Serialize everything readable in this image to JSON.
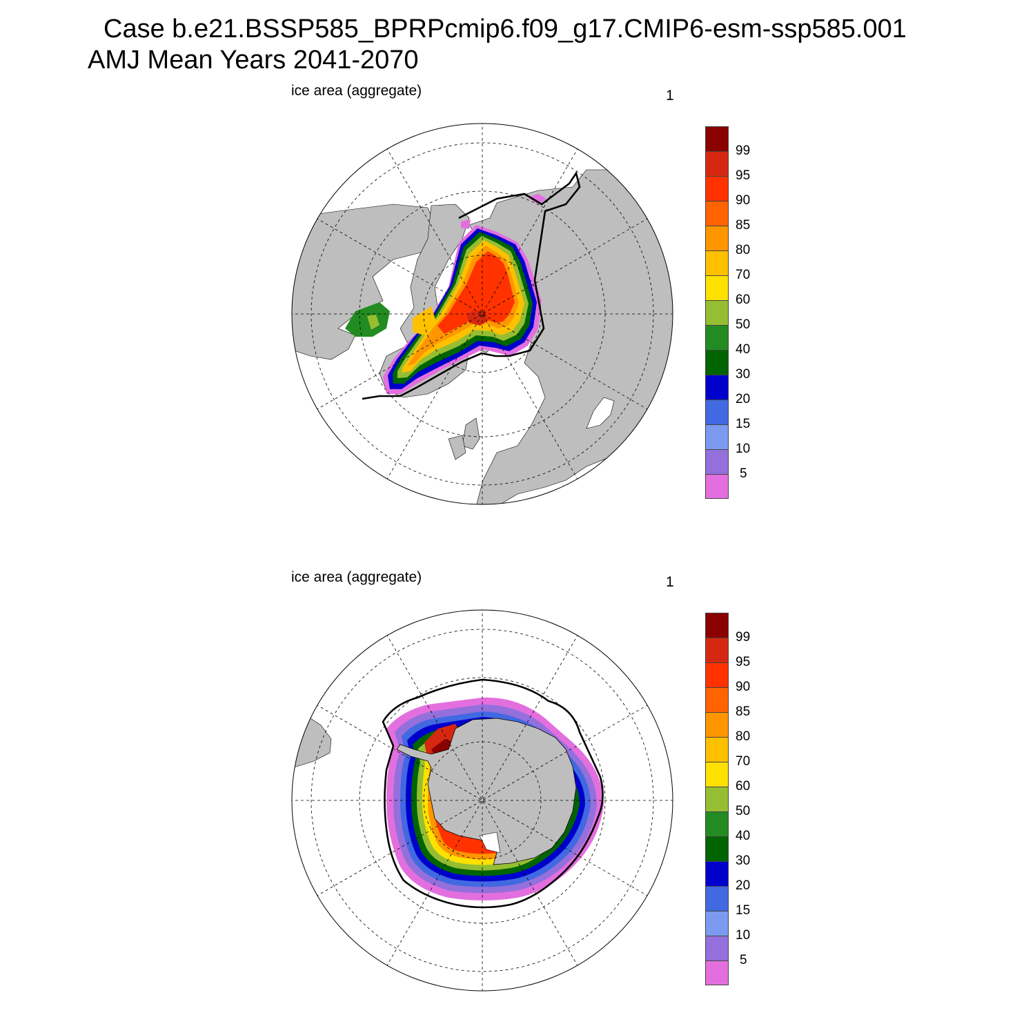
{
  "title_line1": "Case b.e21.BSSP585_BPRPcmip6.f09_g17.CMIP6-esm-ssp585.001",
  "title_line2": "AMJ Mean   Years 2041-2070",
  "panels": [
    {
      "id": "north",
      "label": "ice area  (aggregate)",
      "number": "1"
    },
    {
      "id": "south",
      "label": "ice area  (aggregate)",
      "number": "1"
    }
  ],
  "colorbar": {
    "labels": [
      "99",
      "95",
      "90",
      "85",
      "80",
      "70",
      "60",
      "50",
      "40",
      "30",
      "20",
      "15",
      "10",
      "5"
    ],
    "colors_top_to_bottom": [
      "#8b0000",
      "#d62810",
      "#ff3200",
      "#ff6400",
      "#ff9600",
      "#ffc000",
      "#ffe100",
      "#96be32",
      "#228b22",
      "#006400",
      "#0000cd",
      "#4169e1",
      "#7b9af0",
      "#9370db",
      "#e36fdf"
    ]
  },
  "colors": {
    "land": "#bebebe",
    "ocean": "#ffffff",
    "edge_line": "#000000"
  }
}
